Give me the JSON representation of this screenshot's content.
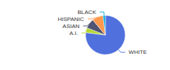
{
  "chart_data": {
    "type": "pie",
    "categories": [
      "WHITE",
      "A.I.",
      "ASIAN",
      "HISPANIC",
      "BLACK"
    ],
    "values": [
      77,
      4,
      8,
      9,
      2
    ]
  }
}
